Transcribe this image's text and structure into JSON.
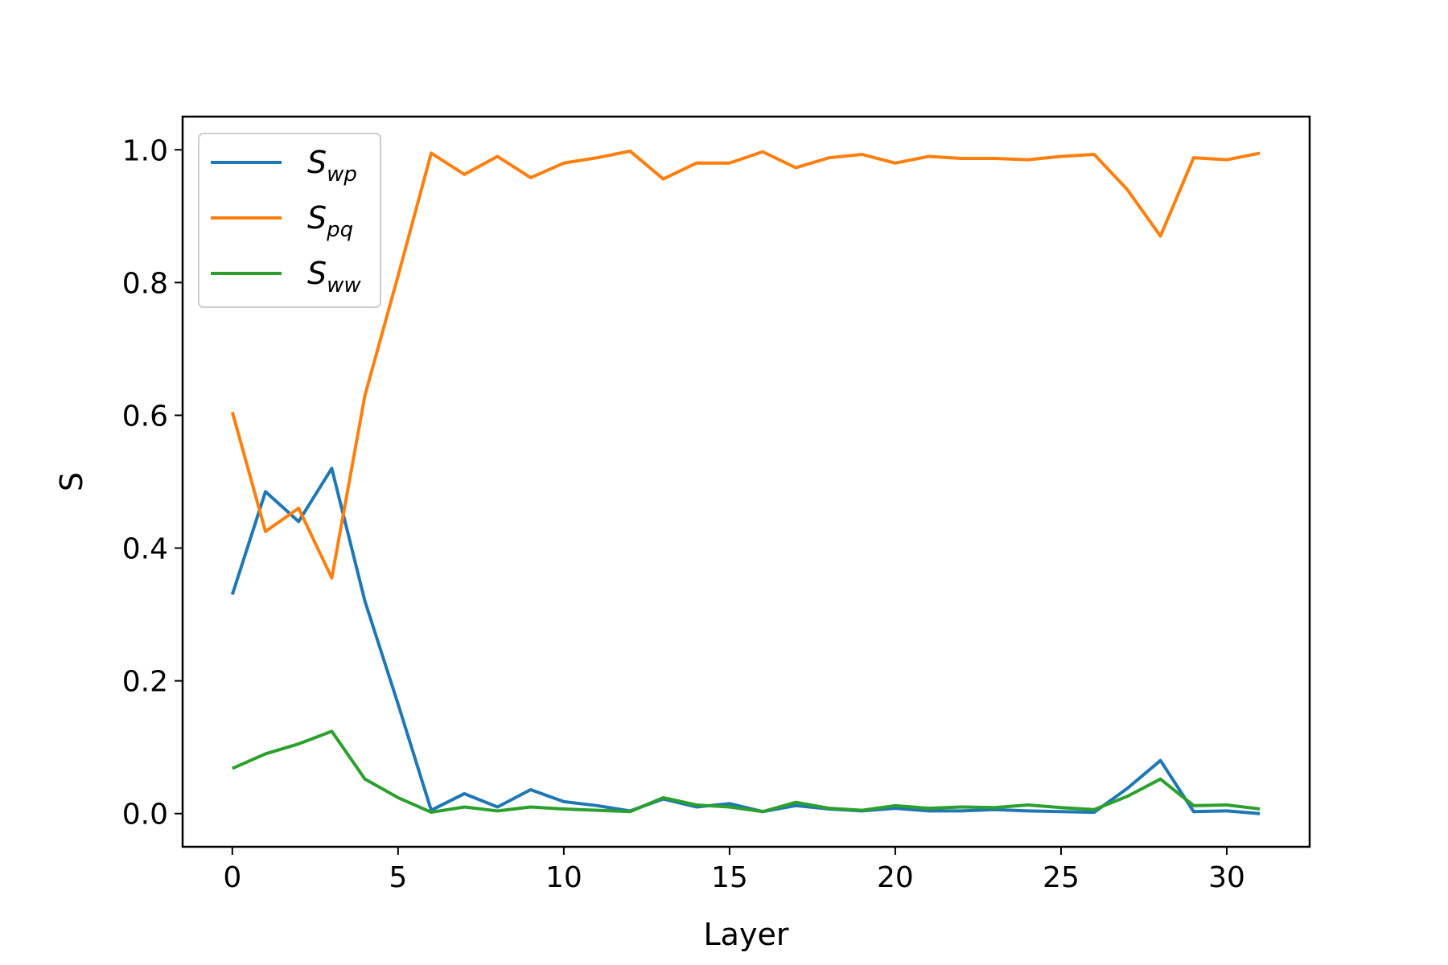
{
  "chart_data": {
    "type": "line",
    "xlabel": "Layer",
    "ylabel": "S",
    "xlim": [
      -1.5,
      32.5
    ],
    "ylim": [
      -0.05,
      1.05
    ],
    "xticks": [
      0,
      5,
      10,
      15,
      20,
      25,
      30
    ],
    "yticks": [
      "0.0",
      "0.2",
      "0.4",
      "0.6",
      "0.8",
      "1.0"
    ],
    "grid": false,
    "legend_position": "top-left",
    "x": [
      0,
      1,
      2,
      3,
      4,
      5,
      6,
      7,
      8,
      9,
      10,
      11,
      12,
      13,
      14,
      15,
      16,
      17,
      18,
      19,
      20,
      21,
      22,
      23,
      24,
      25,
      26,
      27,
      28,
      29,
      30,
      31
    ],
    "series": [
      {
        "name": "S",
        "sub": "wp",
        "color": "#1f77b4",
        "values": [
          0.33,
          0.485,
          0.44,
          0.52,
          0.32,
          0.165,
          0.005,
          0.03,
          0.01,
          0.036,
          0.018,
          0.012,
          0.004,
          0.022,
          0.01,
          0.015,
          0.003,
          0.012,
          0.007,
          0.004,
          0.008,
          0.004,
          0.004,
          0.006,
          0.004,
          0.003,
          0.002,
          0.038,
          0.08,
          0.003,
          0.004,
          0.0
        ]
      },
      {
        "name": "S",
        "sub": "pq",
        "color": "#ff7f0e",
        "values": [
          0.605,
          0.425,
          0.46,
          0.355,
          0.63,
          0.81,
          0.995,
          0.963,
          0.99,
          0.958,
          0.98,
          0.988,
          0.998,
          0.956,
          0.98,
          0.98,
          0.997,
          0.973,
          0.988,
          0.993,
          0.98,
          0.99,
          0.987,
          0.987,
          0.985,
          0.99,
          0.993,
          0.94,
          0.87,
          0.988,
          0.985,
          0.995
        ]
      },
      {
        "name": "S",
        "sub": "ww",
        "color": "#2ca02c",
        "values": [
          0.068,
          0.09,
          0.105,
          0.124,
          0.052,
          0.024,
          0.002,
          0.01,
          0.004,
          0.01,
          0.007,
          0.005,
          0.003,
          0.024,
          0.013,
          0.01,
          0.003,
          0.017,
          0.008,
          0.005,
          0.012,
          0.008,
          0.01,
          0.009,
          0.013,
          0.009,
          0.006,
          0.026,
          0.052,
          0.012,
          0.013,
          0.007
        ]
      }
    ]
  }
}
